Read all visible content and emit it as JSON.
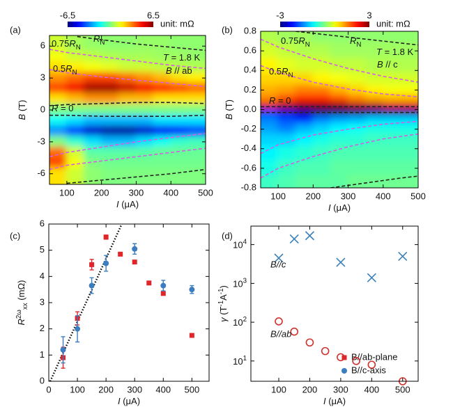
{
  "chart_data": [
    {
      "type": "heatmap",
      "label": "(a)",
      "xlabel": [
        {
          "t": "I",
          "s": "i"
        },
        {
          "t": " (μA)"
        }
      ],
      "ylabel": [
        {
          "t": "B",
          "s": "i"
        },
        {
          "t": " (T)"
        }
      ],
      "xlim": [
        50,
        500
      ],
      "xticks": [
        100,
        200,
        300,
        400,
        500
      ],
      "ylim": [
        -7,
        7
      ],
      "yticks": [
        -6,
        -3,
        0,
        3,
        6
      ],
      "zlim": [
        -6.5,
        6.5
      ],
      "cbticks": [
        -6.5,
        6.5
      ],
      "cblabel": "unit: mΩ",
      "x": [
        75,
        125,
        175,
        225,
        275,
        325,
        375,
        425,
        475
      ],
      "y": [
        6,
        5,
        4,
        3,
        2,
        1,
        0,
        -1,
        -2,
        -3,
        -4,
        -5,
        -6
      ],
      "z": [
        [
          1,
          0.5,
          0.3,
          0.2,
          0.2,
          0.3,
          0.3,
          0.2,
          0.2
        ],
        [
          1.5,
          1,
          0.8,
          0.6,
          0.5,
          0.5,
          0.4,
          0.4,
          0.3
        ],
        [
          2,
          1.8,
          1.5,
          1.3,
          1,
          1,
          0.8,
          0.7,
          0.6
        ],
        [
          3,
          3.5,
          4,
          4,
          3.5,
          3,
          2.5,
          2,
          1.8
        ],
        [
          4,
          5,
          6,
          6,
          5.5,
          5,
          4.5,
          4,
          3.5
        ],
        [
          2,
          2.5,
          3,
          3,
          2.5,
          2.5,
          2,
          2,
          2
        ],
        [
          0,
          0,
          0,
          0,
          0,
          0,
          0,
          0,
          0
        ],
        [
          -1.5,
          -2,
          -2.5,
          -2.5,
          -2.5,
          -2.5,
          -2,
          -2,
          -2
        ],
        [
          -3,
          -4,
          -5.5,
          -6,
          -6,
          -5.5,
          -5,
          -4.5,
          -4
        ],
        [
          0,
          -1,
          -2,
          -2.5,
          -2.5,
          -2,
          -1.5,
          -1,
          -0.8
        ],
        [
          3.5,
          1,
          -0.5,
          -0.5,
          -0.5,
          -0.5,
          -0.3,
          -0.3,
          -0.3
        ],
        [
          4,
          1.5,
          0,
          -0.2,
          -0.2,
          -0.2,
          -0.2,
          -0.2,
          -0.2
        ],
        [
          2,
          1,
          0.2,
          0,
          0,
          0,
          0,
          0,
          0
        ]
      ],
      "contours": [
        {
          "color": "#222222",
          "x": [
            130,
            200,
            300,
            400,
            500
          ],
          "y": [
            6.9,
            6.6,
            6.2,
            5.9,
            5.6
          ]
        },
        {
          "color": "#d65ee6",
          "x": [
            50,
            100,
            200,
            300,
            400,
            500
          ],
          "y": [
            5.7,
            5.4,
            5.0,
            4.6,
            4.2,
            3.9
          ]
        },
        {
          "color": "#d65ee6",
          "x": [
            50,
            100,
            200,
            300,
            400,
            500
          ],
          "y": [
            3.8,
            3.5,
            3.1,
            2.8,
            2.5,
            2.2
          ]
        },
        {
          "color": "#222222",
          "x": [
            50,
            100,
            200,
            300,
            400,
            500
          ],
          "y": [
            0.4,
            0.5,
            0.6,
            0.7,
            0.7,
            0.6
          ]
        },
        {
          "color": "#222222",
          "x": [
            50,
            100,
            200,
            300,
            400,
            500
          ],
          "y": [
            -0.5,
            -0.5,
            -0.6,
            -0.6,
            -0.6,
            -0.5
          ]
        },
        {
          "color": "#d65ee6",
          "x": [
            50,
            100,
            200,
            300,
            400,
            500
          ],
          "y": [
            -4.4,
            -4.0,
            -3.5,
            -3.0,
            -2.6,
            -2.2
          ]
        },
        {
          "color": "#d65ee6",
          "x": [
            50,
            100,
            200,
            300,
            400,
            500
          ],
          "y": [
            -5.6,
            -5.2,
            -4.8,
            -4.4,
            -4.0,
            -3.6
          ]
        },
        {
          "color": "#222222",
          "x": [
            100,
            200,
            300,
            400,
            500
          ],
          "y": [
            -6.9,
            -6.6,
            -6.3,
            -6.0,
            -5.6
          ]
        }
      ],
      "annotations": [
        [
          {
            "t": "0.75"
          },
          {
            "t": "R",
            "s": "i"
          },
          {
            "t": "N",
            "s": "sub"
          }
        ],
        [
          {
            "t": "R",
            "s": "i"
          },
          {
            "t": "N",
            "s": "sub"
          }
        ],
        [
          {
            "t": "0.5"
          },
          {
            "t": "R",
            "s": "i"
          },
          {
            "t": "N",
            "s": "sub"
          }
        ],
        [
          {
            "t": "R",
            "s": "i"
          },
          {
            "t": " = 0"
          }
        ],
        [
          {
            "t": "T",
            "s": "i"
          },
          {
            "t": " = 1.8 K"
          }
        ],
        [
          {
            "t": "B",
            "s": "i"
          },
          {
            "t": " // ab"
          }
        ]
      ]
    },
    {
      "type": "heatmap",
      "label": "(b)",
      "xlabel": [
        {
          "t": "I",
          "s": "i"
        },
        {
          "t": " (μA)"
        }
      ],
      "ylabel": [
        {
          "t": "B",
          "s": "i"
        },
        {
          "t": " (T)"
        }
      ],
      "xlim": [
        50,
        500
      ],
      "xticks": [
        100,
        200,
        300,
        400,
        500
      ],
      "ylim": [
        -0.8,
        0.8
      ],
      "yticks": [
        -0.8,
        -0.6,
        -0.4,
        -0.2,
        {
          "value": 0,
          "label": "0.0"
        },
        0.2,
        0.4,
        0.6,
        0.8
      ],
      "zlim": [
        -3,
        3
      ],
      "cbticks": [
        -3,
        3
      ],
      "cblabel": "unit: mΩ",
      "x": [
        75,
        125,
        175,
        225,
        275,
        325,
        375,
        425,
        475
      ],
      "y": [
        0.75,
        0.6,
        0.45,
        0.3,
        0.2,
        0.1,
        0.03,
        -0.03,
        -0.1,
        -0.2,
        -0.3,
        -0.45,
        -0.6,
        -0.75
      ],
      "z": [
        [
          0.3,
          0.2,
          0.2,
          0.1,
          0.1,
          0.1,
          0.1,
          0.1,
          0.1
        ],
        [
          0.5,
          0.4,
          0.3,
          0.3,
          0.2,
          0.2,
          0.2,
          0.2,
          0.2
        ],
        [
          0.8,
          0.6,
          0.5,
          0.5,
          0.4,
          0.4,
          0.3,
          0.3,
          0.3
        ],
        [
          1,
          1,
          1,
          0.8,
          0.7,
          0.6,
          0.5,
          0.5,
          0.5
        ],
        [
          1.2,
          1.3,
          1.5,
          1.5,
          1.2,
          1,
          0.8,
          0.7,
          0.7
        ],
        [
          1.5,
          1.8,
          2,
          2,
          1.8,
          1.5,
          1.3,
          1.2,
          1.2
        ],
        [
          2.5,
          2.8,
          3,
          3,
          3,
          2.8,
          2.8,
          2.5,
          2.5
        ],
        [
          -2,
          -2.5,
          -2.8,
          -3,
          -3,
          -3,
          -2.8,
          -2.8,
          -2.8
        ],
        [
          -1.5,
          -1.8,
          -2,
          -1.5,
          -1.3,
          -1.2,
          -1,
          -1,
          -1
        ],
        [
          -1.3,
          -1.5,
          -1.2,
          -1,
          -0.8,
          -0.7,
          -0.6,
          -0.6,
          -0.6
        ],
        [
          -1,
          -1,
          -0.8,
          -0.6,
          -0.5,
          -0.5,
          -0.4,
          -0.4,
          -0.4
        ],
        [
          -0.8,
          -0.6,
          -0.5,
          -0.4,
          -0.3,
          -0.3,
          -0.3,
          -0.3,
          -0.3
        ],
        [
          -0.6,
          -0.4,
          -0.3,
          -0.3,
          -0.2,
          -0.2,
          -0.2,
          -0.2,
          -0.2
        ],
        [
          -0.4,
          -0.3,
          -0.2,
          -0.2,
          -0.2,
          -0.1,
          -0.1,
          -0.1,
          -0.1
        ]
      ],
      "contours": [
        {
          "color": "#222222",
          "x": [
            150,
            250,
            350,
            450,
            500
          ],
          "y": [
            0.8,
            0.76,
            0.72,
            0.68,
            0.66
          ]
        },
        {
          "color": "#d65ee6",
          "x": [
            50,
            100,
            200,
            300,
            400,
            500
          ],
          "y": [
            0.72,
            0.64,
            0.52,
            0.42,
            0.34,
            0.28
          ]
        },
        {
          "color": "#d65ee6",
          "x": [
            50,
            100,
            200,
            300,
            400,
            500
          ],
          "y": [
            0.45,
            0.38,
            0.28,
            0.21,
            0.16,
            0.13
          ]
        },
        {
          "color": "#222222",
          "x": [
            50,
            100,
            200,
            300,
            400,
            500
          ],
          "y": [
            0.03,
            0.03,
            0.03,
            0.03,
            0.03,
            0.03
          ]
        },
        {
          "color": "#222222",
          "x": [
            50,
            100,
            200,
            300,
            400,
            500
          ],
          "y": [
            -0.03,
            -0.03,
            -0.03,
            -0.03,
            -0.03,
            -0.03
          ]
        },
        {
          "color": "#d65ee6",
          "x": [
            50,
            100,
            200,
            300,
            400,
            500
          ],
          "y": [
            -0.45,
            -0.36,
            -0.26,
            -0.2,
            -0.15,
            -0.12
          ]
        },
        {
          "color": "#d65ee6",
          "x": [
            50,
            100,
            200,
            300,
            400,
            500
          ],
          "y": [
            -0.7,
            -0.6,
            -0.48,
            -0.38,
            -0.3,
            -0.25
          ]
        },
        {
          "color": "#222222",
          "x": [
            250,
            350,
            450,
            500
          ],
          "y": [
            -0.8,
            -0.75,
            -0.7,
            -0.68
          ]
        }
      ],
      "annotations": [
        [
          {
            "t": "0.75"
          },
          {
            "t": "R",
            "s": "i"
          },
          {
            "t": "N",
            "s": "sub"
          }
        ],
        [
          {
            "t": "R",
            "s": "i"
          },
          {
            "t": "N",
            "s": "sub"
          }
        ],
        [
          {
            "t": "T",
            "s": "i"
          },
          {
            "t": " = 1.8 K"
          }
        ],
        [
          {
            "t": "B",
            "s": "i"
          },
          {
            "t": " // c"
          }
        ],
        [
          {
            "t": "0.5"
          },
          {
            "t": "R",
            "s": "i"
          },
          {
            "t": "N",
            "s": "sub"
          }
        ],
        [
          {
            "t": "R",
            "s": "i"
          },
          {
            "t": " = 0"
          }
        ]
      ]
    },
    {
      "type": "errorscatter",
      "label": "(c)",
      "xlabel": [
        {
          "t": "I",
          "s": "i"
        },
        {
          "t": " (μA)"
        }
      ],
      "ylabel": [
        {
          "t": "R",
          "s": "i"
        },
        {
          "t": "2ω",
          "s": "sup"
        },
        {
          "t": "xx",
          "s": "sub"
        },
        {
          "t": " (mΩ)"
        }
      ],
      "xlim": [
        0,
        560
      ],
      "xticks": [
        0,
        100,
        200,
        300,
        400,
        500
      ],
      "ylim": [
        0,
        6
      ],
      "yticks": [
        0,
        1,
        2,
        3,
        4,
        5,
        6
      ],
      "fit": {
        "x": [
          5,
          255
        ],
        "y": [
          0,
          6
        ]
      },
      "series": [
        {
          "name": "B//ab-plane",
          "color": "#e0262a",
          "marker": "square",
          "x": [
            50,
            100,
            150,
            200,
            250,
            300,
            350,
            400,
            500
          ],
          "values": [
            0.9,
            2.4,
            4.45,
            5.5,
            4.85,
            4.55,
            3.75,
            3.35,
            1.75
          ],
          "errors": [
            0.4,
            0.25,
            0.2,
            0.08,
            0.05,
            0.05,
            0.05,
            0.05,
            0.05
          ]
        },
        {
          "name": "B//c-axis",
          "color": "#3b7dbf",
          "marker": "circle",
          "x": [
            50,
            100,
            150,
            200,
            300,
            400,
            500
          ],
          "values": [
            1.2,
            2.0,
            3.65,
            4.5,
            5.05,
            3.65,
            3.5
          ],
          "errors": [
            0.5,
            0.5,
            0.3,
            0.3,
            0.2,
            0.2,
            0.15
          ]
        }
      ]
    },
    {
      "type": "logscatter",
      "label": "(d)",
      "xlabel": [
        {
          "t": "I",
          "s": "i"
        },
        {
          "t": " (μA)"
        }
      ],
      "ylabel": [
        {
          "t": "γ",
          "s": "i"
        },
        {
          "t": " (T"
        },
        {
          "t": "-1",
          "s": "sup"
        },
        {
          "t": "A"
        },
        {
          "t": "-1",
          "s": "sup"
        },
        {
          "t": ")"
        }
      ],
      "xlim": [
        10,
        550
      ],
      "xticks": [
        100,
        200,
        300,
        400,
        500
      ],
      "ylog": true,
      "ylim": [
        3,
        30000
      ],
      "yticks": [
        {
          "value": 10,
          "label": "10",
          "sup": "1"
        },
        {
          "value": 100,
          "label": "10",
          "sup": "2"
        },
        {
          "value": 1000,
          "label": "10",
          "sup": "3"
        },
        {
          "value": 10000,
          "label": "10",
          "sup": "4"
        }
      ],
      "series": [
        {
          "name": "B//c",
          "color": "#3a80b9",
          "marker": "x",
          "x": [
            100,
            150,
            200,
            300,
            400,
            500
          ],
          "values": [
            4500,
            14000,
            17000,
            3500,
            1400,
            5000
          ]
        },
        {
          "name": "B//ab",
          "color": "#d0312d",
          "marker": "open-circle",
          "x": [
            100,
            150,
            200,
            250,
            300,
            350,
            400,
            500
          ],
          "values": [
            105,
            57,
            30,
            18,
            12.5,
            10,
            8,
            3
          ]
        }
      ]
    }
  ]
}
